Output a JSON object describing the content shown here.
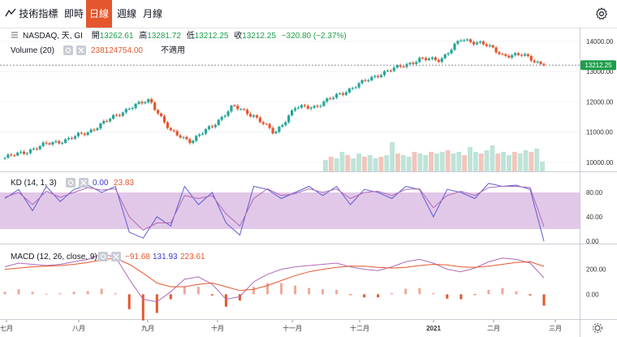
{
  "toolbar": {
    "indicator_label": "技術指標",
    "intervals": [
      "即時",
      "日線",
      "週線",
      "月線"
    ],
    "active_interval": "日線"
  },
  "legend": {
    "symbol": "NASDAQ, 天, GI",
    "open_label": "開",
    "open": "13262.61",
    "high_label": "高",
    "high": "13281.72",
    "low_label": "低",
    "low": "13212.25",
    "close_label": "收",
    "close": "13212.25",
    "change": "−320.80 (−2.37%)",
    "volume_label": "Volume (20)",
    "volume_value": "238124754.00",
    "volume_note": "不適用",
    "kd_label": "KD (14, 1, 3)",
    "kd_k": "0.00",
    "kd_d": "23.83",
    "macd_label": "MACD (12, 26, close, 9)",
    "macd_hist": "−91.68",
    "macd_line": "131.93",
    "macd_signal": "223.61"
  },
  "price_badge": "13212.25",
  "colors": {
    "up": "#26a69a",
    "down": "#e4572e",
    "badge": "#1e9e4a",
    "kd_band": "#d8b6e0"
  },
  "chart_data": [
    {
      "type": "candlestick",
      "title": "NASDAQ, 天, GI",
      "x": [
        "2020-07-01",
        "2020-07-10",
        "2020-07-20",
        "2020-07-31",
        "2020-08-10",
        "2020-08-20",
        "2020-08-31",
        "2020-09-03",
        "2020-09-10",
        "2020-09-23",
        "2020-10-01",
        "2020-10-12",
        "2020-10-23",
        "2020-11-02",
        "2020-11-10",
        "2020-11-20",
        "2020-12-01",
        "2020-12-15",
        "2020-12-31",
        "2021-01-08",
        "2021-01-20",
        "2021-02-01",
        "2021-02-12",
        "2021-02-19",
        "2021-02-23",
        "2021-02-25",
        "2021-02-26"
      ],
      "close": [
        10150,
        10350,
        10600,
        10750,
        11000,
        11400,
        11800,
        12060,
        11000,
        10700,
        11200,
        11850,
        11550,
        10950,
        11800,
        11850,
        12200,
        12550,
        12900,
        13150,
        13400,
        13400,
        14050,
        13950,
        13550,
        13540,
        13212.25
      ],
      "ylim": [
        9700,
        14400
      ],
      "yticks": [
        10000,
        11000,
        12000,
        13000,
        14000
      ],
      "ytick_labels": [
        "10000.00",
        "11000.00",
        "12000.00",
        "13000.00",
        "14000.00"
      ],
      "xtick_labels": [
        "七月",
        "八月",
        "九月",
        "十月",
        "十一月",
        "十二月",
        "2021",
        "二月",
        "三月"
      ],
      "last_value": 13212.25
    },
    {
      "type": "bar",
      "series": [
        {
          "name": "Volume (20)",
          "values": [
            0.35,
            0.45,
            0.4,
            0.6,
            0.5,
            0.4,
            0.55,
            0.45,
            0.5,
            0.4,
            0.45,
            0.5,
            0.9,
            0.55,
            0.5,
            0.45,
            0.6,
            0.55,
            0.5,
            0.6,
            0.55,
            0.6,
            0.65,
            0.55,
            0.6,
            0.5,
            0.75,
            0.6,
            0.55,
            0.65,
            0.8,
            0.55,
            0.6,
            0.5,
            0.6,
            0.55,
            0.65,
            0.6,
            0.7,
            0.3
          ]
        }
      ],
      "last_value": 238124754.0
    },
    {
      "type": "line",
      "title": "KD (14, 1, 3)",
      "ylim": [
        0,
        100
      ],
      "yticks": [
        0,
        40,
        80
      ],
      "ytick_labels": [
        "0.00",
        "40.00",
        "80.00"
      ],
      "band": [
        20,
        80
      ],
      "series": [
        {
          "name": "K",
          "values": [
            70,
            85,
            50,
            90,
            65,
            85,
            92,
            80,
            90,
            15,
            5,
            40,
            25,
            90,
            60,
            80,
            30,
            10,
            90,
            85,
            70,
            80,
            90,
            75,
            90,
            60,
            85,
            80,
            70,
            90,
            85,
            40,
            85,
            80,
            70,
            95,
            90,
            92,
            85,
            0
          ]
        },
        {
          "name": "D",
          "values": [
            72,
            80,
            60,
            82,
            72,
            80,
            88,
            84,
            86,
            40,
            18,
            30,
            30,
            75,
            70,
            75,
            45,
            25,
            70,
            86,
            75,
            78,
            86,
            80,
            86,
            70,
            80,
            82,
            75,
            85,
            86,
            55,
            75,
            82,
            75,
            88,
            90,
            90,
            88,
            23.83
          ]
        }
      ]
    },
    {
      "type": "line",
      "title": "MACD (12, 26, close, 9)",
      "ylim": [
        -180,
        380
      ],
      "yticks": [
        0,
        200
      ],
      "ytick_labels": [
        "0.00",
        "200.00"
      ],
      "series": [
        {
          "name": "MACD",
          "values": [
            220,
            250,
            240,
            230,
            240,
            260,
            280,
            320,
            300,
            120,
            -40,
            -60,
            20,
            120,
            140,
            80,
            -40,
            -20,
            100,
            160,
            200,
            220,
            230,
            240,
            250,
            220,
            200,
            190,
            220,
            260,
            280,
            250,
            200,
            180,
            210,
            260,
            290,
            280,
            250,
            131.93
          ]
        },
        {
          "name": "Signal",
          "values": [
            200,
            210,
            220,
            225,
            230,
            240,
            255,
            275,
            290,
            240,
            170,
            90,
            60,
            60,
            80,
            90,
            60,
            30,
            40,
            70,
            110,
            150,
            180,
            200,
            215,
            225,
            225,
            215,
            210,
            215,
            230,
            240,
            235,
            220,
            215,
            225,
            240,
            255,
            260,
            223.61
          ]
        },
        {
          "name": "Histogram",
          "values": [
            20,
            40,
            20,
            5,
            10,
            20,
            25,
            45,
            10,
            -120,
            -210,
            -150,
            -40,
            60,
            60,
            -10,
            -100,
            -50,
            60,
            90,
            90,
            70,
            50,
            40,
            35,
            -5,
            -25,
            -25,
            10,
            45,
            50,
            10,
            -35,
            -40,
            -5,
            35,
            50,
            25,
            -10,
            -91.68
          ]
        }
      ]
    }
  ]
}
